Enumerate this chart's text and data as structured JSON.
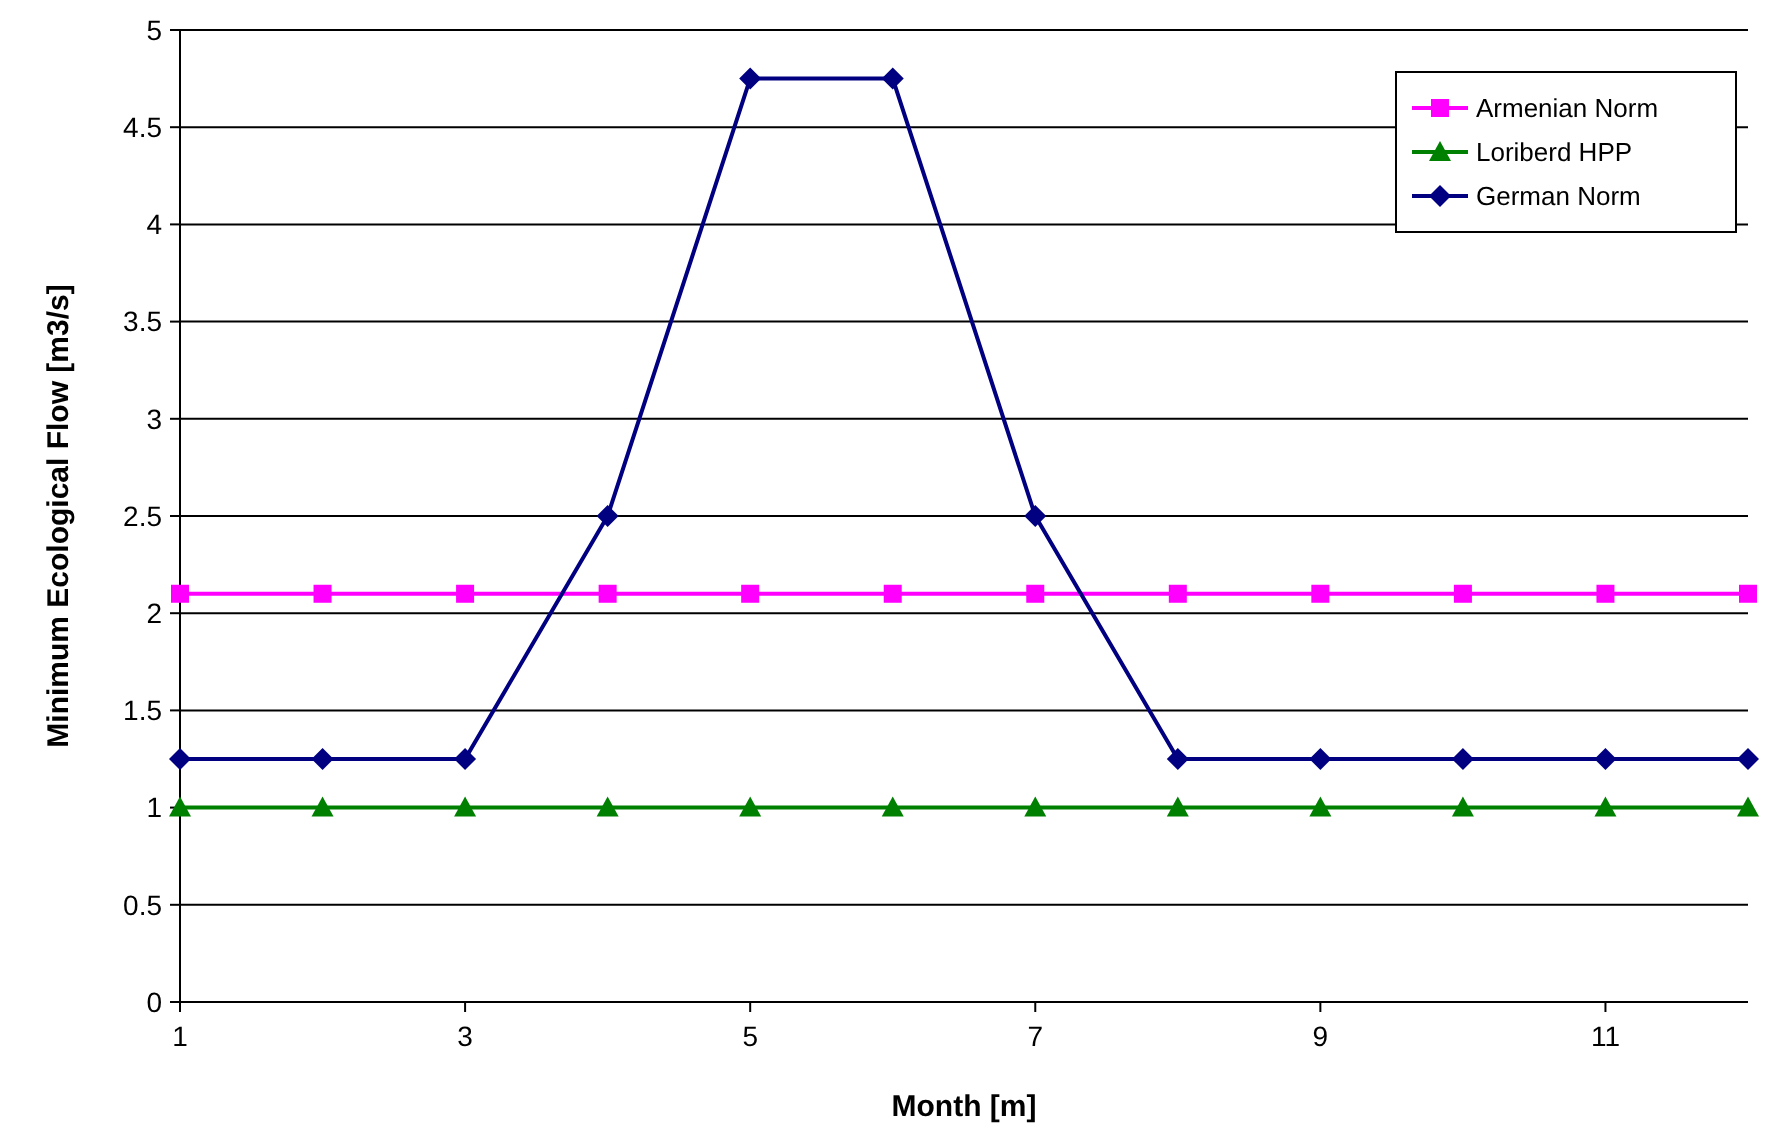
{
  "chart_data": {
    "type": "line",
    "xlabel": "Month [m]",
    "ylabel": "Minimum Ecological Flow [m3/s]",
    "x": [
      1,
      2,
      3,
      4,
      5,
      6,
      7,
      8,
      9,
      10,
      11,
      12
    ],
    "xlim": [
      1,
      12
    ],
    "xticks": [
      1,
      3,
      5,
      7,
      9,
      11
    ],
    "ylim": [
      0,
      5
    ],
    "yticks": [
      0,
      0.5,
      1,
      1.5,
      2,
      2.5,
      3,
      3.5,
      4,
      4.5,
      5
    ],
    "grid": "y",
    "legend": "top right",
    "series": [
      {
        "name": "Armenian Norm",
        "color": "#ff00ff",
        "marker": "square",
        "values": [
          2.1,
          2.1,
          2.1,
          2.1,
          2.1,
          2.1,
          2.1,
          2.1,
          2.1,
          2.1,
          2.1,
          2.1
        ]
      },
      {
        "name": "Loriberd HPP",
        "color": "#008000",
        "marker": "triangle",
        "values": [
          1,
          1,
          1,
          1,
          1,
          1,
          1,
          1,
          1,
          1,
          1,
          1
        ]
      },
      {
        "name": "German Norm",
        "color": "#000080",
        "marker": "diamond",
        "values": [
          1.25,
          1.25,
          1.25,
          2.5,
          4.75,
          4.75,
          2.5,
          1.25,
          1.25,
          1.25,
          1.25,
          1.25
        ]
      }
    ]
  }
}
